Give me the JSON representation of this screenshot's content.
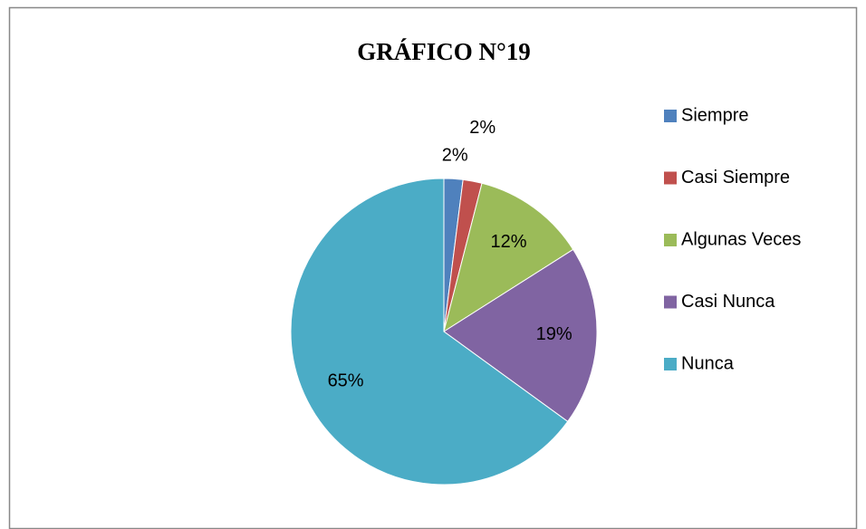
{
  "chart_data": {
    "type": "pie",
    "title": "GRÁFICO N°19",
    "categories": [
      "Siempre",
      "Casi Siempre",
      "Algunas Veces",
      "Casi Nunca",
      "Nunca"
    ],
    "values": [
      2,
      2,
      12,
      19,
      65
    ],
    "value_labels": [
      "2%",
      "2%",
      "12%",
      "19%",
      "65%"
    ],
    "colors": [
      "#4f81bd",
      "#c0504d",
      "#9bbb59",
      "#8064a2",
      "#4bacc6"
    ],
    "legend": "right"
  }
}
